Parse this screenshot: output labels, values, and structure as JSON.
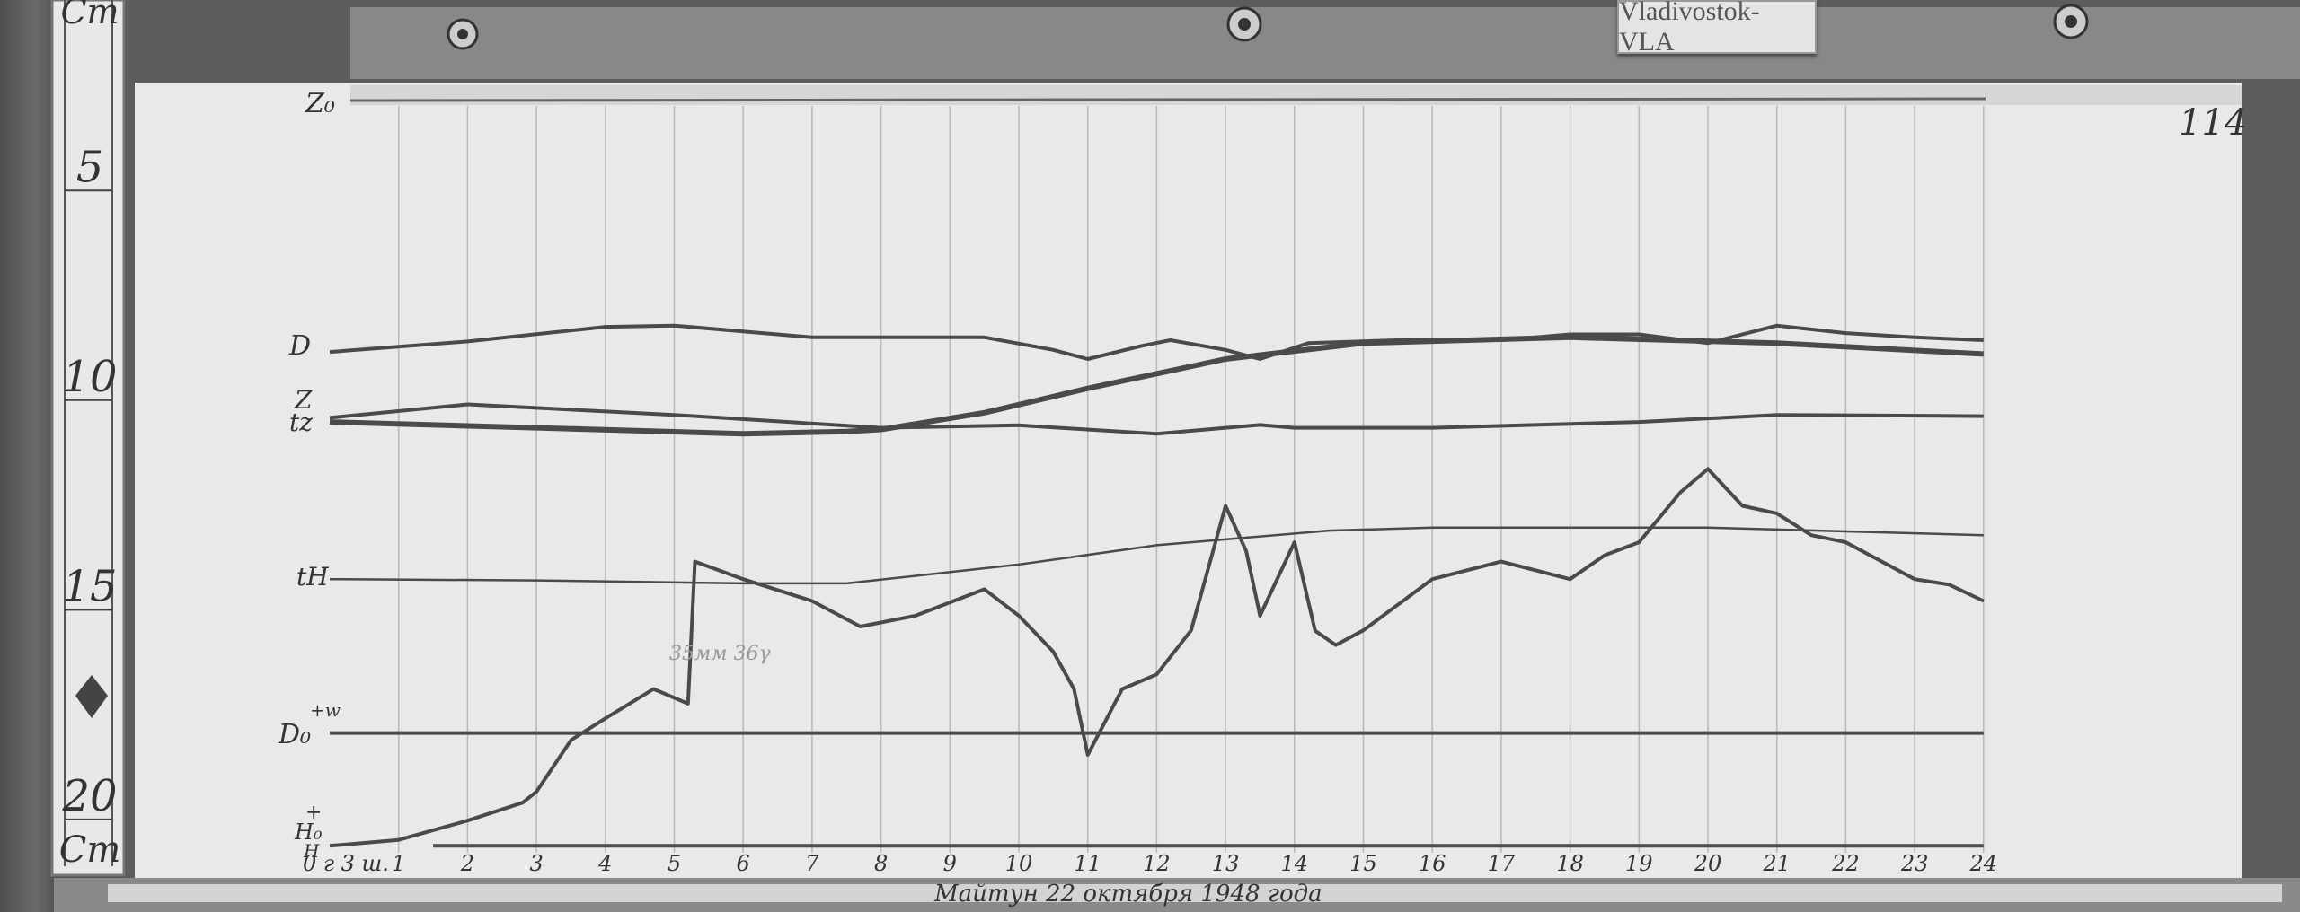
{
  "plate_label": "Vladivostok-VLA",
  "sheet_number": "114",
  "ruler": {
    "unit_top": "Cm",
    "unit_bottom": "Cm",
    "marks": [
      "5",
      "10",
      "15",
      "20"
    ]
  },
  "trace_labels": {
    "z0": "Z₀",
    "d": "D",
    "z": "Z",
    "tz": "tz",
    "th": "tH",
    "d0": "D₀",
    "d0_sign": "+w",
    "h0": "H₀",
    "h": "H",
    "h0_sign": "+"
  },
  "note": "35мм 36γ",
  "caption": "Майтун 22 октября 1948 года",
  "colors": {
    "paper": "#e9e9e9",
    "trace": "#4a4a4a",
    "grid": "#b8b8b8"
  },
  "chart_data": {
    "type": "line",
    "title": "",
    "xlabel": "",
    "ylabel": "",
    "x_ticks": [
      "0 г 3 ш. ",
      "1",
      "2",
      "3",
      "4",
      "5",
      "6",
      "7",
      "8",
      "9",
      "10",
      "11",
      "12",
      "13",
      "14",
      "15",
      "16",
      "17",
      "18",
      "19",
      "20",
      "21",
      "22",
      "23",
      "24"
    ],
    "xlim": [
      0,
      24
    ],
    "y_unit_from_ruler": "Cm",
    "ylim": [
      5,
      21
    ],
    "grid": "vertical hourly lines",
    "series": [
      {
        "name": "D",
        "points": [
          [
            0,
            8.85
          ],
          [
            2,
            8.6
          ],
          [
            4,
            8.25
          ],
          [
            5,
            8.22
          ],
          [
            7,
            8.5
          ],
          [
            9.5,
            8.5
          ],
          [
            10.5,
            8.8
          ],
          [
            11,
            9.02
          ],
          [
            11.8,
            8.7
          ],
          [
            12.2,
            8.57
          ],
          [
            13,
            8.8
          ],
          [
            13.5,
            9.02
          ],
          [
            14.2,
            8.64
          ],
          [
            15.5,
            8.57
          ],
          [
            17,
            8.57
          ],
          [
            18,
            8.43
          ],
          [
            19,
            8.43
          ],
          [
            20,
            8.64
          ],
          [
            21,
            8.22
          ],
          [
            22,
            8.4
          ],
          [
            23,
            8.5
          ],
          [
            24,
            8.57
          ]
        ]
      },
      {
        "name": "Z",
        "points": [
          [
            0,
            10.42
          ],
          [
            2,
            10.1
          ],
          [
            5,
            10.35
          ],
          [
            8,
            10.66
          ],
          [
            10,
            10.6
          ],
          [
            12,
            10.8
          ],
          [
            13.5,
            10.59
          ],
          [
            14,
            10.66
          ],
          [
            16,
            10.66
          ],
          [
            19,
            10.52
          ],
          [
            21,
            10.35
          ],
          [
            24,
            10.38
          ]
        ]
      },
      {
        "name": "tz",
        "points": [
          [
            0,
            10.52
          ],
          [
            3,
            10.66
          ],
          [
            6,
            10.8
          ],
          [
            7.5,
            10.75
          ],
          [
            8,
            10.7
          ],
          [
            9.5,
            10.3
          ],
          [
            11,
            9.72
          ],
          [
            13,
            9.02
          ],
          [
            15,
            8.64
          ],
          [
            18,
            8.5
          ],
          [
            21,
            8.64
          ],
          [
            24,
            8.9
          ]
        ]
      },
      {
        "name": "tH",
        "points": [
          [
            0,
            14.27
          ],
          [
            3,
            14.3
          ],
          [
            6,
            14.37
          ],
          [
            7.5,
            14.37
          ],
          [
            10,
            13.92
          ],
          [
            12,
            13.46
          ],
          [
            14.5,
            13.11
          ],
          [
            16,
            13.04
          ],
          [
            20,
            13.04
          ],
          [
            24,
            13.22
          ]
        ]
      },
      {
        "name": "D₀",
        "points": [
          [
            0,
            17.94
          ],
          [
            24,
            17.94
          ]
        ]
      },
      {
        "name": "H",
        "points": [
          [
            0,
            20.63
          ],
          [
            1,
            20.49
          ],
          [
            2,
            20.03
          ],
          [
            2.8,
            19.6
          ],
          [
            3,
            19.34
          ],
          [
            3.5,
            18.11
          ],
          [
            4,
            17.59
          ],
          [
            4.7,
            16.89
          ],
          [
            5.2,
            17.24
          ],
          [
            5.3,
            13.85
          ],
          [
            6,
            14.27
          ],
          [
            7,
            14.79
          ],
          [
            7.7,
            15.4
          ],
          [
            8.5,
            15.14
          ],
          [
            9.5,
            14.51
          ],
          [
            10,
            15.14
          ],
          [
            10.5,
            16.0
          ],
          [
            10.8,
            16.89
          ],
          [
            11,
            18.46
          ],
          [
            11.5,
            16.89
          ],
          [
            12,
            16.54
          ],
          [
            12.5,
            15.49
          ],
          [
            13,
            12.52
          ],
          [
            13.3,
            13.6
          ],
          [
            13.5,
            15.14
          ],
          [
            14,
            13.39
          ],
          [
            14.3,
            15.5
          ],
          [
            14.6,
            15.84
          ],
          [
            15,
            15.49
          ],
          [
            16,
            14.27
          ],
          [
            17,
            13.85
          ],
          [
            18,
            14.27
          ],
          [
            18.5,
            13.7
          ],
          [
            19,
            13.39
          ],
          [
            19.6,
            12.2
          ],
          [
            20,
            11.64
          ],
          [
            20.5,
            12.52
          ],
          [
            21,
            12.7
          ],
          [
            21.5,
            13.22
          ],
          [
            22,
            13.39
          ],
          [
            23,
            14.27
          ],
          [
            23.5,
            14.4
          ],
          [
            24,
            14.79
          ]
        ]
      }
    ]
  }
}
